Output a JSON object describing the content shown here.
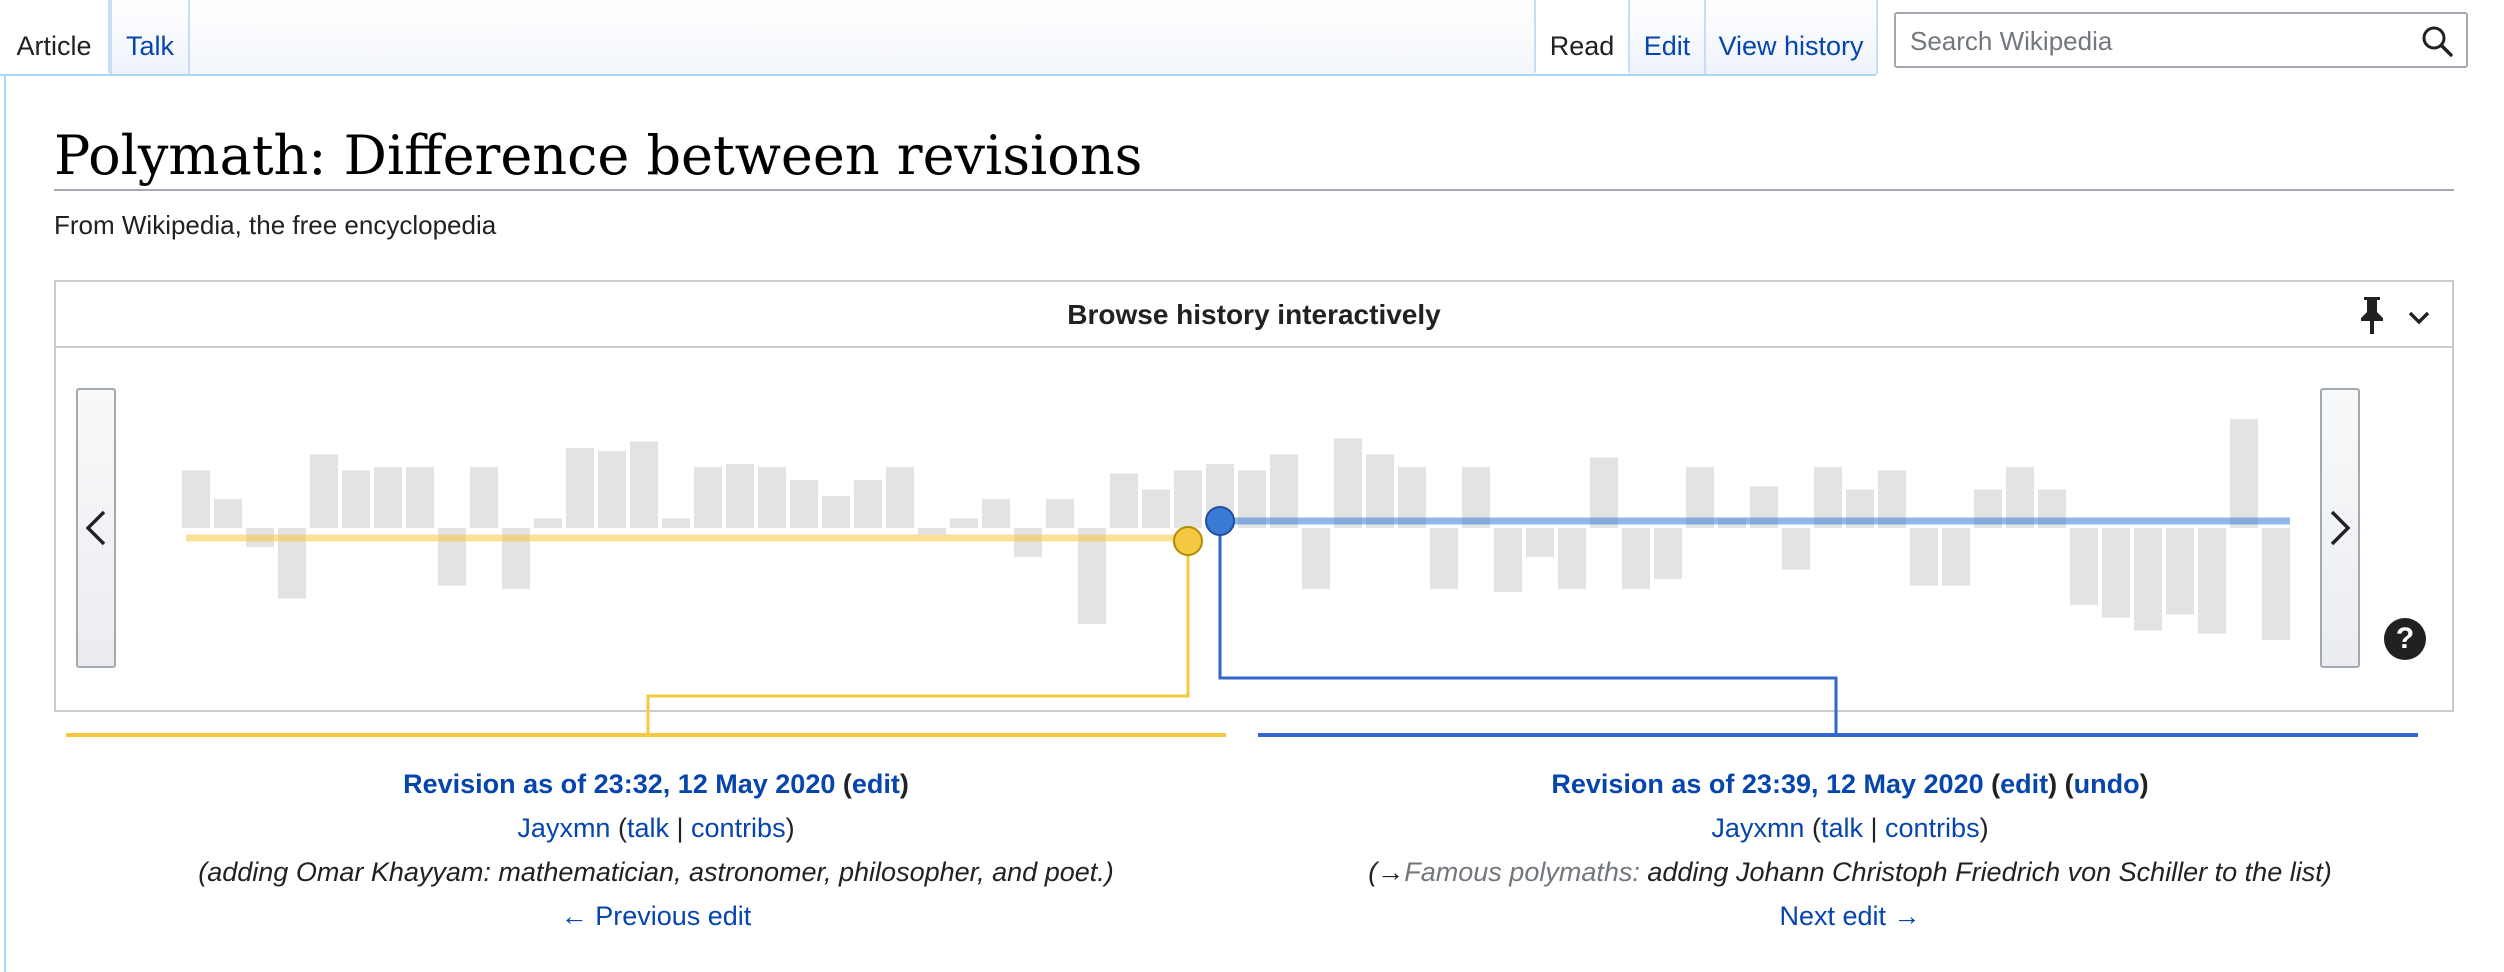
{
  "tabs": {
    "left": [
      {
        "label": "Article",
        "selected": true
      },
      {
        "label": "Talk",
        "selected": false
      }
    ],
    "right": [
      {
        "label": "Read",
        "selected": true
      },
      {
        "label": "Edit",
        "selected": false
      },
      {
        "label": "View history",
        "selected": false
      }
    ]
  },
  "search": {
    "placeholder": "Search Wikipedia",
    "value": "",
    "icon": "search-icon"
  },
  "page": {
    "title": "Polymath: Difference between revisions",
    "tagline": "From Wikipedia, the free encyclopedia"
  },
  "history": {
    "title": "Browse history interactively",
    "pin_icon": "pin-icon",
    "collapse_icon": "chevron-down-icon",
    "help_label": "?",
    "colors": {
      "older": "#f5c842",
      "newer": "#3a7bd5",
      "bar": "#e3e3e3",
      "newer_line": "#3366cc"
    },
    "bar_changes": [
      36,
      18,
      -12,
      -44,
      46,
      36,
      38,
      38,
      -36,
      38,
      -38,
      6,
      50,
      48,
      54,
      6,
      38,
      40,
      38,
      30,
      20,
      30,
      38,
      -4,
      6,
      18,
      -18,
      18,
      -60,
      34,
      24,
      36,
      40,
      36,
      46,
      -38,
      56,
      46,
      38,
      -38,
      38,
      -40,
      -18,
      -38,
      44,
      -38,
      -32,
      38,
      6,
      26,
      -26,
      38,
      24,
      36,
      -36,
      -36,
      24,
      38,
      24,
      -48,
      -56,
      -64,
      -54,
      -66,
      68,
      -70
    ],
    "older_index": 31,
    "newer_index": 32
  },
  "revisions": {
    "older": {
      "title_link": "Revision as of 23:32, 12 May 2020",
      "actions": [
        "edit"
      ],
      "user": "Jayxmn",
      "talk": "talk",
      "contribs": "contribs",
      "summary": "(adding Omar Khayyam: mathematician, astronomer, philosopher, and poet.)",
      "nav": "← Previous edit"
    },
    "newer": {
      "title_link": "Revision as of 23:39, 12 May 2020",
      "actions": [
        "edit",
        "undo"
      ],
      "user": "Jayxmn",
      "talk": "talk",
      "contribs": "contribs",
      "summary_arrow": "(→",
      "summary_section": "Famous polymaths:",
      "summary_text": " adding Johann Christoph Friedrich von Schiller to the list)",
      "nav": "Next edit →"
    }
  }
}
